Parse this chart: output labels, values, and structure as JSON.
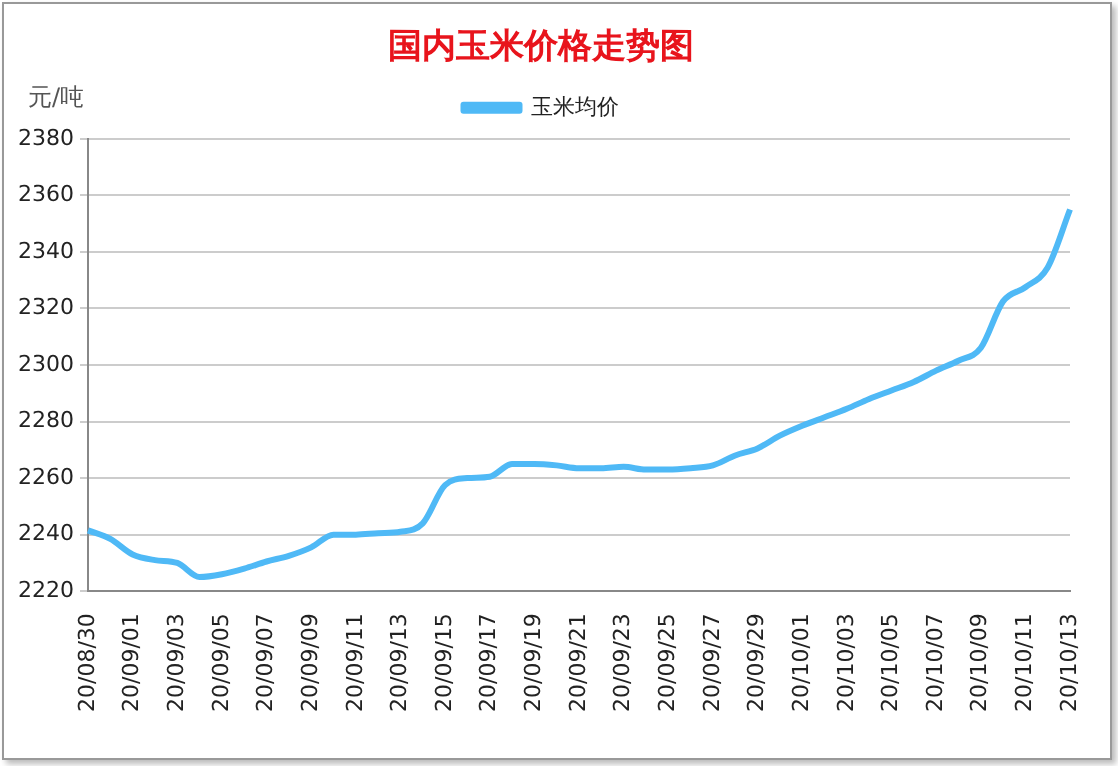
{
  "chart_data": {
    "type": "line",
    "title": "国内玉米价格走势图",
    "ylabel": "元/吨",
    "categories": [
      "20/08/30",
      null,
      "20/09/01",
      null,
      "20/09/03",
      null,
      "20/09/05",
      null,
      "20/09/07",
      null,
      "20/09/09",
      null,
      "20/09/11",
      null,
      "20/09/13",
      null,
      "20/09/15",
      null,
      "20/09/17",
      null,
      "20/09/19",
      null,
      "20/09/21",
      null,
      "20/09/23",
      null,
      "20/09/25",
      null,
      "20/09/27",
      null,
      "20/09/29",
      null,
      "20/10/01",
      null,
      "20/10/03",
      null,
      "20/10/05",
      null,
      "20/10/07",
      null,
      "20/10/09",
      null,
      "20/10/11",
      null,
      "20/10/13"
    ],
    "series": [
      {
        "name": "玉米均价",
        "color": "#4fb9f6",
        "values": [
          2241.5,
          2238.5,
          2233,
          2231,
          2230,
          2225,
          2226,
          2228,
          2230.5,
          2232.5,
          2235.5,
          2240,
          2240,
          2240.5,
          2241,
          2244,
          2257.5,
          2260,
          2260.5,
          2265,
          2265,
          2264.5,
          2263.5,
          2263.5,
          2264,
          2263,
          2263,
          2263.5,
          2264.5,
          2268,
          2270.5,
          2275,
          2278.5,
          2281.5,
          2284.5,
          2288,
          2291,
          2294,
          2298,
          2301.5,
          2306,
          2322.5,
          2327.5,
          2334.5,
          2355
        ]
      }
    ],
    "ylim": [
      2220,
      2380
    ],
    "yticks": [
      2220,
      2240,
      2260,
      2280,
      2300,
      2320,
      2340,
      2360,
      2380
    ],
    "grid": "y",
    "legend": "top",
    "marker": "none",
    "line_style": "solid"
  }
}
